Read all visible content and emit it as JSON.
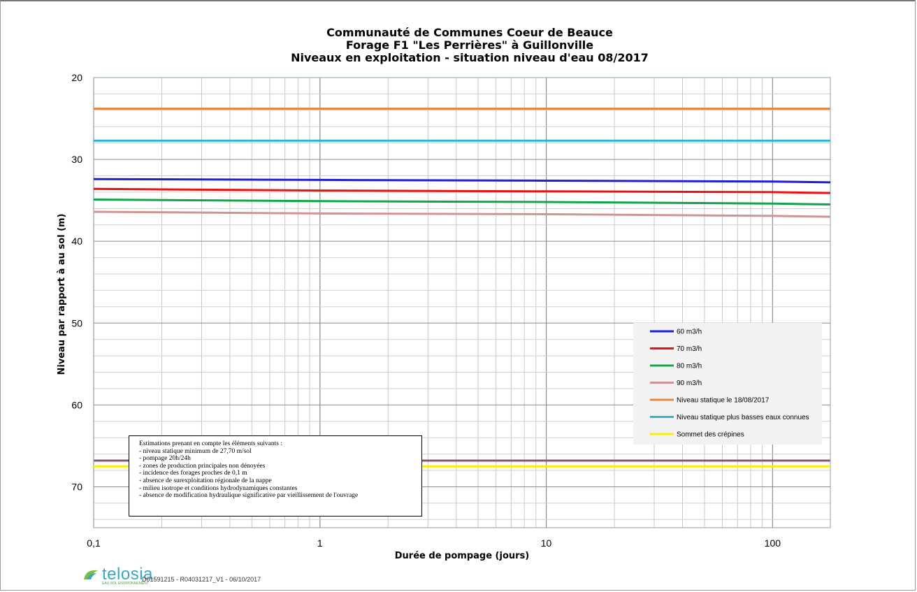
{
  "chart_data": {
    "type": "line",
    "title_lines": [
      "Communauté de Communes Coeur de Beauce",
      "Forage F1 \"Les Perrières\" à Guillonville",
      "Niveaux en exploitation - situation niveau d'eau 08/2017"
    ],
    "xlabel": "Durée de pompage (jours)",
    "ylabel": "Niveau par rapport à au sol (m)",
    "x_scale": "log",
    "xlim": [
      0.1,
      180
    ],
    "ylim": [
      20,
      75
    ],
    "y_inverted": true,
    "x_ticks": [
      "0,1",
      "1",
      "10",
      "100"
    ],
    "x_tick_values": [
      0.1,
      1,
      10,
      100
    ],
    "y_ticks": [
      "20",
      "30",
      "40",
      "50",
      "60",
      "70"
    ],
    "y_tick_values": [
      20,
      30,
      40,
      50,
      60,
      70
    ],
    "grid": true,
    "legend_position": "right",
    "series": [
      {
        "name": "60 m3/h",
        "color": "#1f1fd6",
        "x": [
          0.1,
          1,
          10,
          100,
          180
        ],
        "y": [
          32.4,
          32.5,
          32.6,
          32.7,
          32.8
        ]
      },
      {
        "name": "70 m3/h",
        "color": "#ee1111",
        "x": [
          0.1,
          1,
          10,
          100,
          180
        ],
        "y": [
          33.6,
          33.8,
          33.9,
          34.0,
          34.1
        ]
      },
      {
        "name": "80 m3/h",
        "color": "#12a54a",
        "x": [
          0.1,
          1,
          10,
          100,
          180
        ],
        "y": [
          34.9,
          35.1,
          35.2,
          35.4,
          35.5
        ]
      },
      {
        "name": "90 m3/h",
        "color": "#d09494",
        "x": [
          0.1,
          1,
          10,
          100,
          180
        ],
        "y": [
          36.4,
          36.6,
          36.7,
          36.9,
          37.0
        ]
      },
      {
        "name": "Niveau statique le 18/08/2017",
        "color": "#e08a45",
        "x": [
          0.1,
          180
        ],
        "y": [
          23.8,
          23.8
        ]
      },
      {
        "name": "Niveau statique plus basses eaux connues",
        "color": "#27b8d6",
        "x": [
          0.1,
          180
        ],
        "y": [
          27.7,
          27.7
        ]
      },
      {
        "name": "Sommet des crépines",
        "color": "#ffee00",
        "x": [
          0.1,
          180
        ],
        "y": [
          67.5,
          67.5
        ]
      }
    ],
    "extra_lines": [
      {
        "color": "#7a5c78",
        "y": 66.8
      }
    ],
    "annotation": {
      "lines": [
        "Estimations prenant en compte les éléments suivants :",
        "- niveau statique minimum de  27,70 m/sol",
        "- pompage 20h/24h",
        "- zones de production principales non dénoyées",
        "- incidence des forages proches de 0,1 m",
        "- absence de surexploitation régionale de la nappe",
        "- milieu isotrope et conditions hydrodynamiques constantes",
        "- absence de modification hydraulique significative par vieillissement de l'ouvrage"
      ]
    }
  },
  "footer": {
    "logo_text": "telosia",
    "logo_tagline": "EAU SOL ENVIRONNEMENT",
    "reference": "D01591215 - R04031217_V1 - 06/10/2017"
  }
}
